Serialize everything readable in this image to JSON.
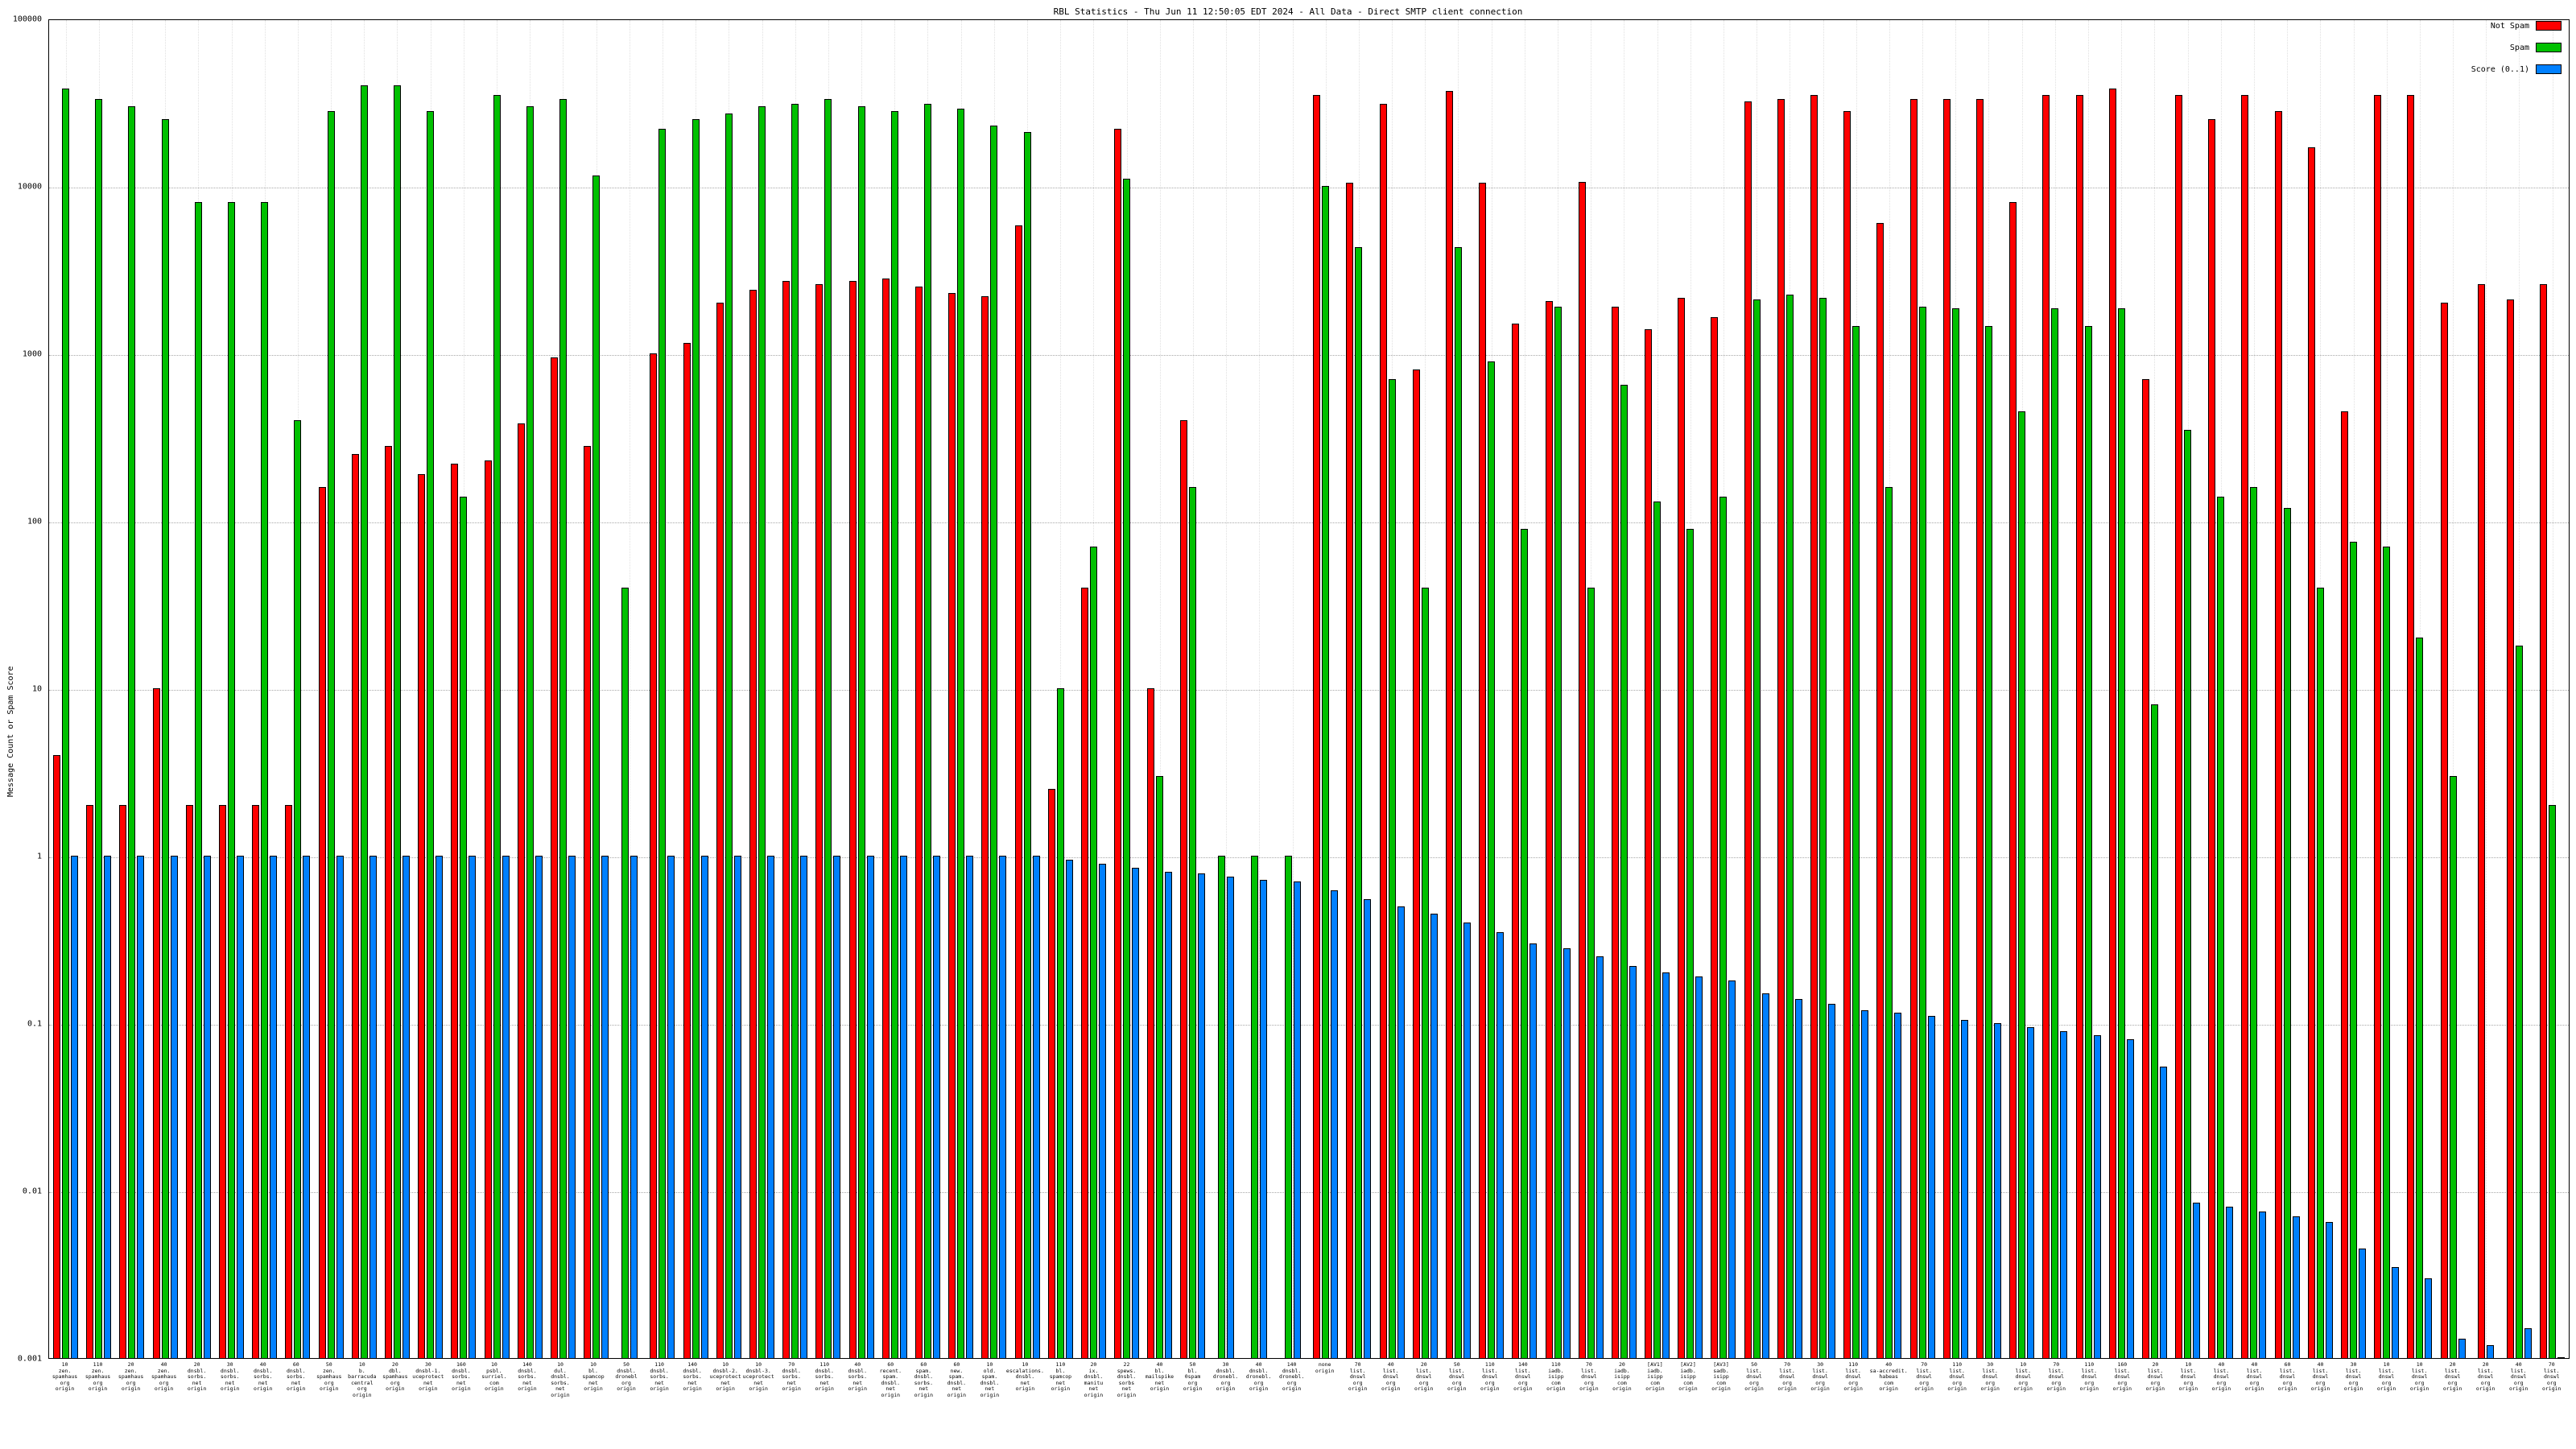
{
  "title": "RBL Statistics - Thu Jun 11 12:50:05 EDT 2024 - All Data - Direct SMTP client connection",
  "colors": {
    "not_spam": "#ff0000",
    "spam": "#00c000",
    "score": "#0080ff",
    "grid": "#a8a8a8"
  },
  "chart_data": {
    "type": "bar",
    "scale": "log",
    "title": "RBL Statistics - Thu Jun 11 12:50:05 EDT 2024 - All Data - Direct SMTP client connection",
    "ylabel": "Message Count or Spam Score",
    "xlabel": "",
    "ylim": [
      0.001,
      100000
    ],
    "yticks": [
      "100000",
      "10000",
      "1000",
      "100",
      "10",
      "1",
      "0.1",
      "0.01",
      "0.001"
    ],
    "grid": true,
    "legend_position": "top-right",
    "categories": [
      "10 zen. spamhaus org origin",
      "110 zen. spamhaus org origin",
      "20 zen. spamhaus org origin",
      "40 zen. spamhaus org origin",
      "20 dnsbl. sorbs. net origin",
      "30 dnsbl. sorbs. net origin",
      "40 dnsbl. sorbs. net origin",
      "60 dnsbl. sorbs. net origin",
      "50 zen. spamhaus org origin",
      "10 b. barracuda central org origin",
      "20 dbl. spamhaus org origin",
      "30 dnsbl-1. uceprotect net origin",
      "160 dnsbl. sorbs. net origin",
      "10 psbl. surriel. com origin",
      "140 dnsbl. sorbs. net origin",
      "10 dul. dnsbl. sorbs. net origin",
      "10 bl. spamcop net origin",
      "50 dnsbl. dronebl org origin",
      "110 dnsbl. sorbs. net origin",
      "140 dnsbl. sorbs. net origin",
      "10 dnsbl-2. uceprotect net origin",
      "10 dnsbl-3. uceprotect net origin",
      "70 dnsbl. sorbs. net origin",
      "110 dnsbl. sorbs. net origin",
      "40 dnsbl. sorbs. net origin",
      "60 recent. spam. dnsbl. net origin",
      "60 spam. dnsbl. sorbs. net origin",
      "60 new. spam. dnsbl. net origin",
      "10 old. spam. dnsbl. net origin",
      "10 escalations. dnsbl. net origin",
      "110 bl. spamcop net origin",
      "20 ix. dnsbl. manitu net origin",
      "22 spews. dnsbl. sorbs net origin",
      "40 bl. mailspike net origin",
      "50 bl. 0spam org origin",
      "30 dnsbl. dronebl. org origin",
      "40 dnsbl. dronebl. org origin",
      "140 dnsbl. dronebl. org origin",
      "none origin",
      "70 list. dnswl org origin",
      "40 list. dnswl org origin",
      "20 list. dnswl org origin",
      "50 list. dnswl org origin",
      "110 list. dnswl org origin",
      "140 list. dnswl org origin",
      "110 iadb. isipp com origin",
      "70 list. dnswl org origin",
      "20 iadb. isipp com origin",
      "[AV1] iadb. isipp com origin",
      "[AV2] iadb. isipp com origin",
      "[AV3] sadb. isipp com origin",
      "50 list. dnswl org origin",
      "70 list. dnswl org origin",
      "30 list. dnswl org origin",
      "110 list. dnswl org origin",
      "40 sa-accredit. habeas com origin",
      "70 list. dnswl org origin",
      "110 list. dnswl org origin",
      "30 list. dnswl org origin",
      "10 list. dnswl org origin",
      "70 list. dnswl org origin",
      "110 list. dnswl org origin",
      "160 list. dnswl org origin",
      "20 list. dnswl org origin",
      "10 list. dnswl org origin",
      "40 list. dnswl org origin",
      "40 list. dnswl org origin",
      "60 list. dnswl org origin",
      "40 list. dnswl org origin",
      "30 list. dnswl org origin",
      "10 list. dnswl org origin",
      "10 list. dnswl org origin",
      "20 list. dnswl org origin",
      "20 list. dnswl org origin",
      "40 list. dnswl org origin",
      "70 list. dnswl org origin"
    ],
    "series": [
      {
        "name": "Not Spam",
        "key": "not-spam",
        "color": "#ff0000",
        "values": [
          4,
          2,
          2,
          10,
          2,
          2,
          2,
          2,
          160,
          250,
          280,
          190,
          220,
          230,
          380,
          950,
          280,
          0,
          1000,
          1150,
          2000,
          2400,
          2700,
          2600,
          2700,
          2800,
          2500,
          2300,
          2200,
          5800,
          2.5,
          40,
          22000,
          10,
          400,
          0,
          0,
          0,
          35000,
          10500,
          31000,
          800,
          37000,
          10400,
          1500,
          2050,
          10600,
          1900,
          1400,
          2150,
          1650,
          32000,
          33000,
          35000,
          28000,
          6000,
          33000,
          33000,
          33000,
          8000,
          35000,
          35000,
          38000,
          700,
          35000,
          25000,
          35000,
          28000,
          17000,
          450,
          35000,
          35000,
          2000,
          2600,
          2100,
          2600
        ]
      },
      {
        "name": "Spam",
        "key": "spam",
        "color": "#00c000",
        "values": [
          38000,
          33000,
          30000,
          25000,
          8000,
          8000,
          8000,
          400,
          28000,
          40000,
          40000,
          28000,
          140,
          35000,
          30000,
          33000,
          11500,
          40,
          22000,
          25000,
          27000,
          30000,
          31000,
          33000,
          30000,
          28000,
          31000,
          29000,
          23000,
          21000,
          10,
          70,
          11000,
          3,
          160,
          1,
          1,
          1,
          10000,
          4300,
          700,
          40,
          4300,
          900,
          90,
          1900,
          40,
          650,
          130,
          90,
          140,
          2100,
          2250,
          2150,
          1450,
          160,
          1900,
          1850,
          1450,
          450,
          1850,
          1450,
          1850,
          8,
          350,
          140,
          160,
          120,
          40,
          75,
          70,
          20,
          3,
          0,
          18,
          2
        ]
      },
      {
        "name": "Score (0..1)",
        "key": "score",
        "color": "#0080ff",
        "values": [
          1,
          1,
          1,
          1,
          1,
          1,
          1,
          1,
          1,
          1,
          1,
          1,
          1,
          1,
          1,
          1,
          1,
          1,
          1,
          1,
          1,
          1,
          1,
          1,
          1,
          1,
          1,
          1,
          1,
          1,
          0.95,
          0.9,
          0.85,
          0.8,
          0.78,
          0.75,
          0.72,
          0.7,
          0.62,
          0.55,
          0.5,
          0.45,
          0.4,
          0.35,
          0.3,
          0.28,
          0.25,
          0.22,
          0.2,
          0.19,
          0.18,
          0.15,
          0.14,
          0.13,
          0.12,
          0.115,
          0.11,
          0.105,
          0.1,
          0.095,
          0.09,
          0.085,
          0.08,
          0.055,
          0.0085,
          0.008,
          0.0075,
          0.007,
          0.0065,
          0.0045,
          0.0035,
          0.003,
          0.0013,
          0.0012,
          0.0015,
          0.001
        ]
      }
    ]
  }
}
